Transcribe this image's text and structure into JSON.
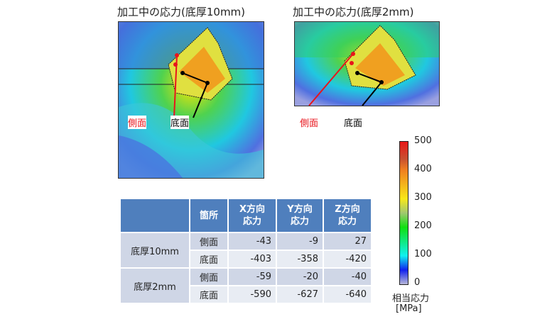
{
  "titles": {
    "left": "加工中の応力(底厚10mm)",
    "right": "加工中の応力(底厚2mm)"
  },
  "labels": {
    "side": "側面",
    "bottom": "底面"
  },
  "table": {
    "headers": [
      "",
      "箇所",
      "X方向\n応力",
      "Y方向\n応力",
      "Z方向\n応力"
    ],
    "groups": [
      {
        "name": "底厚10mm",
        "rows": [
          {
            "loc": "側面",
            "x": "-43",
            "y": "-9",
            "z": "27"
          },
          {
            "loc": "底面",
            "x": "-403",
            "y": "-358",
            "z": "-420"
          }
        ]
      },
      {
        "name": "底厚2mm",
        "rows": [
          {
            "loc": "側面",
            "x": "-59",
            "y": "-20",
            "z": "-40"
          },
          {
            "loc": "底面",
            "x": "-590",
            "y": "-627",
            "z": "-640"
          }
        ]
      }
    ]
  },
  "colorbar": {
    "ticks": [
      "500",
      "400",
      "300",
      "200",
      "100",
      "0"
    ],
    "label": "相当応力",
    "unit": "[MPa]",
    "min": 0,
    "max": 500
  },
  "colors": {
    "side": "#e8141c",
    "bottom": "#000000",
    "header": "#4f7fbd"
  }
}
